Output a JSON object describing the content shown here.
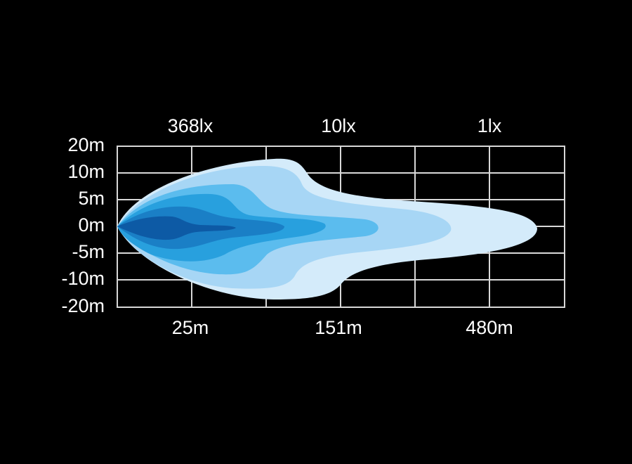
{
  "top_labels": [
    "368lx",
    "10lx",
    "1lx"
  ],
  "y_labels": [
    "20m",
    "10m",
    "5m",
    "0m",
    "-5m",
    "-10m",
    "-20m"
  ],
  "bottom_labels": [
    "25m",
    "151m",
    "480m"
  ]
}
